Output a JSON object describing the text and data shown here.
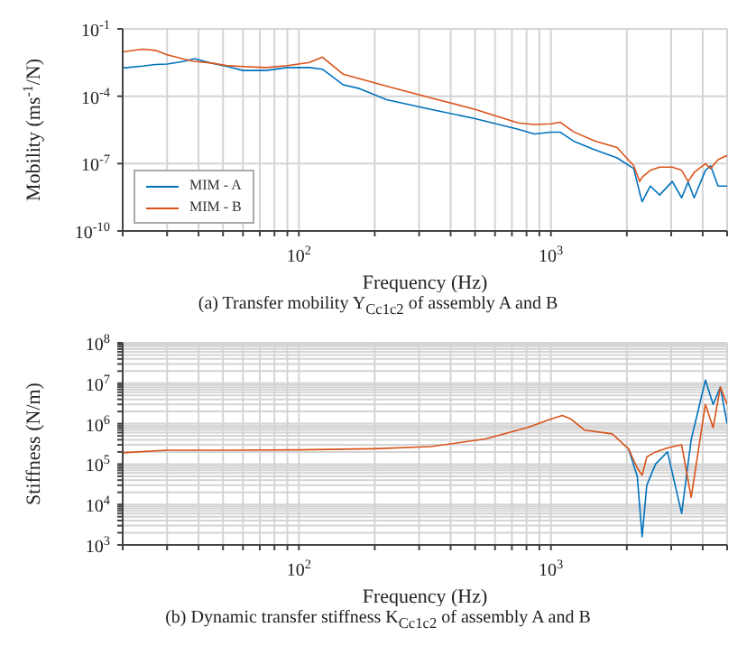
{
  "chart_data": [
    {
      "type": "line",
      "xlabel": "Frequency (Hz)",
      "ylabel": "Mobility (ms$^{-1}$/N)",
      "log": "xy",
      "grid": true,
      "legend": "bottom left",
      "annotations": [
        "(a) Transfer mobility Y$_{Cc1c2}$ of assembly A and B"
      ],
      "xlim": [
        20,
        5000
      ],
      "ylim": [
        1e-10,
        0.1
      ],
      "xticks": [
        {
          "value": 20,
          "label": null
        },
        {
          "value": 30,
          "label": null
        },
        {
          "value": 40,
          "label": null
        },
        {
          "value": 50,
          "label": null
        },
        {
          "value": 60,
          "label": null
        },
        {
          "value": 70,
          "label": null
        },
        {
          "value": 80,
          "label": null
        },
        {
          "value": 90,
          "label": null
        },
        {
          "value": 100,
          "label": "10$^{2}$"
        },
        {
          "value": 200,
          "label": null
        },
        {
          "value": 300,
          "label": null
        },
        {
          "value": 400,
          "label": null
        },
        {
          "value": 500,
          "label": null
        },
        {
          "value": 600,
          "label": null
        },
        {
          "value": 700,
          "label": null
        },
        {
          "value": 800,
          "label": null
        },
        {
          "value": 900,
          "label": null
        },
        {
          "value": 1000,
          "label": "10$^{3}$"
        },
        {
          "value": 2000,
          "label": null
        },
        {
          "value": 3000,
          "label": null
        },
        {
          "value": 4000,
          "label": null
        },
        {
          "value": 5000,
          "label": null
        }
      ],
      "yticks": [
        {
          "value": 1e-10,
          "label": "10$^{-10}$"
        },
        {
          "value": 1e-07,
          "label": "10$^{-7}$"
        },
        {
          "value": 0.0001,
          "label": "10$^{-4}$"
        },
        {
          "value": 0.1,
          "label": "10$^{-1}$"
        }
      ],
      "x": [
        20,
        24,
        27,
        30,
        35,
        38.5,
        45,
        52,
        60,
        74,
        90,
        110,
        124,
        150,
        174,
        223,
        334,
        500,
        741,
        860,
        1000,
        1090,
        1230,
        1500,
        1830,
        2130,
        2250,
        2300,
        2480,
        2700,
        3030,
        3300,
        3500,
        3700,
        4100,
        4300,
        4600,
        5000
      ],
      "series": [
        {
          "name": "MIM - A",
          "color": "#0072bd",
          "values": [
            0.0018,
            0.0022,
            0.0026,
            0.0027,
            0.0036,
            0.0047,
            0.003,
            0.0021,
            0.0014,
            0.0014,
            0.0019,
            0.0019,
            0.0016,
            0.00032,
            0.00022,
            7e-05,
            2.6e-05,
            1e-05,
            3.4e-06,
            2.1e-06,
            2.5e-06,
            2.5e-06,
            1e-06,
            4e-07,
            1.8e-07,
            6e-08,
            5e-09,
            2e-09,
            1e-08,
            4e-09,
            1.6e-08,
            3e-09,
            1.5e-08,
            3e-09,
            5e-08,
            8e-08,
            1e-08,
            1e-08
          ]
        },
        {
          "name": "MIM - B",
          "color": "#d95319",
          "values": [
            0.0095,
            0.0125,
            0.011,
            0.007,
            0.0045,
            0.0036,
            0.003,
            0.0023,
            0.0021,
            0.0019,
            0.0023,
            0.0032,
            0.0055,
            0.00095,
            0.0006,
            0.00028,
            8.5e-05,
            2.6e-05,
            6.5e-06,
            5.5e-06,
            5.9e-06,
            6.9e-06,
            2.6e-06,
            1e-06,
            5.2e-07,
            8e-08,
            1.6e-08,
            2.5e-08,
            5e-08,
            7e-08,
            7e-08,
            5e-08,
            1.6e-08,
            4e-08,
            1e-07,
            6e-08,
            1.5e-07,
            2.3e-07
          ]
        }
      ]
    },
    {
      "type": "line",
      "xlabel": "Frequency (Hz)",
      "ylabel": "Stiffness (N/m)",
      "log": "xy",
      "grid": true,
      "annotations": [
        "(b) Dynamic transfer stiffness K$_{Cc1c2}$ of assembly A and B"
      ],
      "xlim": [
        20,
        5000
      ],
      "ylim": [
        1000,
        100000000
      ],
      "xticks": [
        {
          "value": 20,
          "label": null
        },
        {
          "value": 30,
          "label": null
        },
        {
          "value": 40,
          "label": null
        },
        {
          "value": 50,
          "label": null
        },
        {
          "value": 60,
          "label": null
        },
        {
          "value": 70,
          "label": null
        },
        {
          "value": 80,
          "label": null
        },
        {
          "value": 90,
          "label": null
        },
        {
          "value": 100,
          "label": "10$^{2}$"
        },
        {
          "value": 200,
          "label": null
        },
        {
          "value": 300,
          "label": null
        },
        {
          "value": 400,
          "label": null
        },
        {
          "value": 500,
          "label": null
        },
        {
          "value": 600,
          "label": null
        },
        {
          "value": 700,
          "label": null
        },
        {
          "value": 800,
          "label": null
        },
        {
          "value": 900,
          "label": null
        },
        {
          "value": 1000,
          "label": "10$^{3}$"
        },
        {
          "value": 2000,
          "label": null
        },
        {
          "value": 3000,
          "label": null
        },
        {
          "value": 4000,
          "label": null
        },
        {
          "value": 5000,
          "label": null
        }
      ],
      "yticks": [
        {
          "value": 1000,
          "label": "10$^{3}$"
        },
        {
          "value": 2000,
          "label": null
        },
        {
          "value": 3000,
          "label": null
        },
        {
          "value": 4000,
          "label": null
        },
        {
          "value": 5000,
          "label": null
        },
        {
          "value": 6000,
          "label": null
        },
        {
          "value": 7000,
          "label": null
        },
        {
          "value": 8000,
          "label": null
        },
        {
          "value": 9000,
          "label": null
        },
        {
          "value": 10000,
          "label": "10$^{4}$"
        },
        {
          "value": 20000,
          "label": null
        },
        {
          "value": 30000,
          "label": null
        },
        {
          "value": 40000,
          "label": null
        },
        {
          "value": 50000,
          "label": null
        },
        {
          "value": 60000,
          "label": null
        },
        {
          "value": 70000,
          "label": null
        },
        {
          "value": 80000,
          "label": null
        },
        {
          "value": 90000,
          "label": null
        },
        {
          "value": 100000,
          "label": "10$^{5}$"
        },
        {
          "value": 200000,
          "label": null
        },
        {
          "value": 300000,
          "label": null
        },
        {
          "value": 400000,
          "label": null
        },
        {
          "value": 500000,
          "label": null
        },
        {
          "value": 600000,
          "label": null
        },
        {
          "value": 700000,
          "label": null
        },
        {
          "value": 800000,
          "label": null
        },
        {
          "value": 900000,
          "label": null
        },
        {
          "value": 1000000,
          "label": "10$^{6}$"
        },
        {
          "value": 2000000,
          "label": null
        },
        {
          "value": 3000000,
          "label": null
        },
        {
          "value": 4000000,
          "label": null
        },
        {
          "value": 5000000,
          "label": null
        },
        {
          "value": 6000000,
          "label": null
        },
        {
          "value": 7000000,
          "label": null
        },
        {
          "value": 8000000,
          "label": null
        },
        {
          "value": 9000000,
          "label": null
        },
        {
          "value": 10000000,
          "label": "10$^{7}$"
        },
        {
          "value": 20000000,
          "label": null
        },
        {
          "value": 30000000,
          "label": null
        },
        {
          "value": 40000000,
          "label": null
        },
        {
          "value": 50000000,
          "label": null
        },
        {
          "value": 60000000,
          "label": null
        },
        {
          "value": 70000000,
          "label": null
        },
        {
          "value": 80000000,
          "label": null
        },
        {
          "value": 90000000,
          "label": null
        },
        {
          "value": 100000000,
          "label": "10$^{8}$"
        }
      ],
      "x": [
        20,
        30,
        50,
        100,
        200,
        334,
        550,
        810,
        1000,
        1110,
        1200,
        1360,
        1750,
        2030,
        2200,
        2300,
        2400,
        2600,
        2900,
        3300,
        3600,
        4100,
        4400,
        4700,
        5000
      ],
      "series": [
        {
          "color": "#0072bd",
          "values": [
            null,
            null,
            null,
            null,
            null,
            null,
            null,
            null,
            null,
            null,
            null,
            null,
            null,
            240000,
            50000,
            1600,
            30000,
            100000,
            200000,
            6000,
            400000,
            12000000,
            3000000,
            8000000,
            1000000
          ]
        },
        {
          "color": "#d95319",
          "values": [
            190000,
            220000,
            220000,
            225000,
            240000,
            270000,
            420000,
            810000,
            1300000,
            1600000,
            1300000,
            690000,
            560000,
            240000,
            80000,
            53000,
            150000,
            200000,
            250000,
            300000,
            15000,
            3000000,
            800000,
            8000000,
            3000000
          ]
        }
      ]
    }
  ]
}
